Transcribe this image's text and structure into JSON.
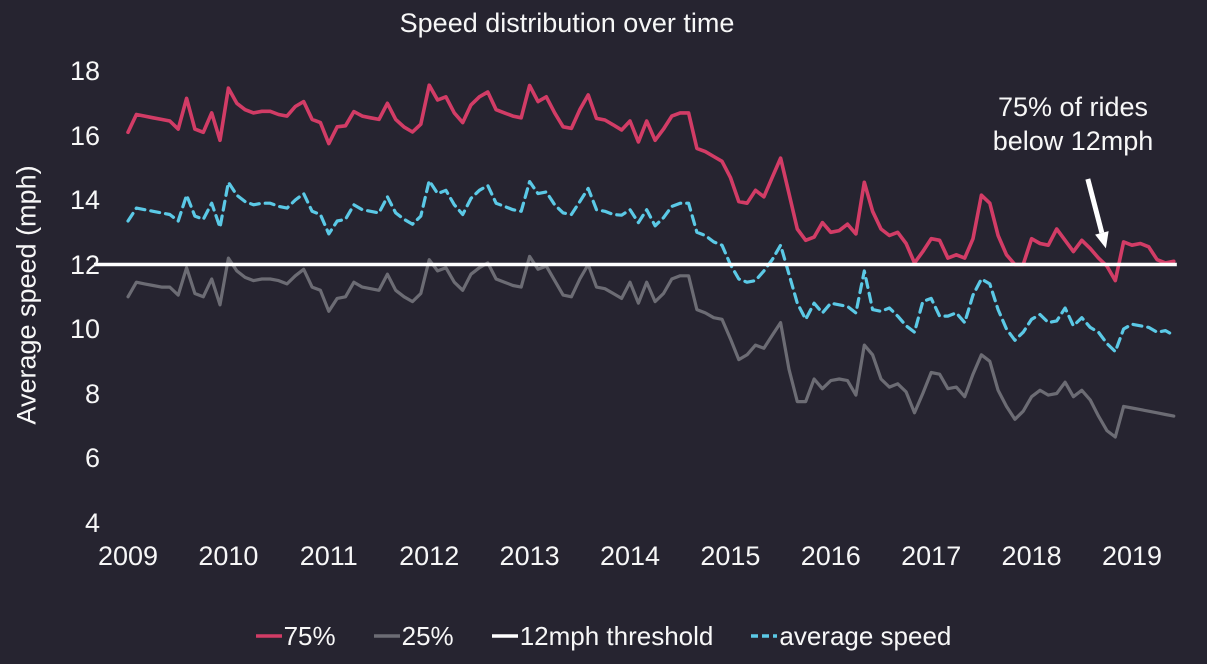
{
  "colors": {
    "background": "#262430",
    "text": "#f7f7f7",
    "p75": "#d23c66",
    "p25": "#6c6c74",
    "average": "#5bc9e6",
    "threshold": "#ffffff"
  },
  "chart_data": {
    "type": "line",
    "title": "Speed distribution over time",
    "xlabel": "",
    "ylabel": "Average speed (mph)",
    "grid": false,
    "legend_position": "bottom",
    "ylim": [
      4,
      18
    ],
    "y_tick_values": [
      18,
      16,
      14,
      12,
      10,
      8,
      6,
      4
    ],
    "x_tick_years": [
      2009,
      2010,
      2011,
      2012,
      2013,
      2014,
      2015,
      2016,
      2017,
      2018,
      2019
    ],
    "x_start_year": 2009,
    "points_per_year": 12,
    "threshold": {
      "label": "12mph threshold",
      "value": 12,
      "color": "#ffffff"
    },
    "annotation": {
      "line1": "75% of rides",
      "line2": "below 12mph",
      "arrow": {
        "from": {
          "year": 2018.56,
          "value": 14.65
        },
        "to": {
          "year": 2018.74,
          "value": 12.5
        }
      }
    },
    "legend": [
      "75%",
      "25%",
      "12mph threshold",
      "average speed"
    ],
    "series": [
      {
        "name": "25%",
        "color": "#6c6c74",
        "style": "solid",
        "values": [
          11.0,
          11.45,
          11.4,
          11.35,
          11.3,
          11.3,
          11.05,
          11.9,
          11.1,
          11.0,
          11.55,
          10.75,
          12.2,
          11.8,
          11.6,
          11.5,
          11.55,
          11.55,
          11.5,
          11.4,
          11.65,
          11.85,
          11.3,
          11.2,
          10.55,
          10.95,
          11.0,
          11.45,
          11.3,
          11.25,
          11.2,
          11.7,
          11.2,
          11.0,
          10.85,
          11.1,
          12.15,
          11.8,
          11.9,
          11.45,
          11.2,
          11.7,
          11.9,
          12.05,
          11.55,
          11.45,
          11.35,
          11.3,
          12.25,
          11.85,
          11.95,
          11.5,
          11.05,
          11.0,
          11.55,
          12.0,
          11.3,
          11.25,
          11.1,
          10.95,
          11.45,
          10.8,
          11.45,
          10.85,
          11.1,
          11.55,
          11.65,
          11.65,
          10.6,
          10.5,
          10.35,
          10.3,
          9.7,
          9.05,
          9.2,
          9.5,
          9.4,
          9.8,
          10.2,
          8.75,
          7.75,
          7.75,
          8.45,
          8.15,
          8.4,
          8.45,
          8.4,
          7.95,
          9.5,
          9.2,
          8.45,
          8.2,
          8.3,
          8.05,
          7.4,
          8.0,
          8.65,
          8.6,
          8.15,
          8.2,
          7.9,
          8.6,
          9.2,
          9.0,
          8.1,
          7.6,
          7.2,
          7.45,
          7.9,
          8.1,
          7.95,
          8.0,
          8.35,
          7.9,
          8.1,
          7.8,
          7.3,
          6.85,
          6.65,
          7.6,
          7.55,
          7.5,
          7.45,
          7.4,
          7.35,
          7.3
        ]
      },
      {
        "name": "average speed",
        "color": "#5bc9e6",
        "style": "dashed",
        "values": [
          13.35,
          13.75,
          13.7,
          13.65,
          13.6,
          13.55,
          13.35,
          14.15,
          13.5,
          13.4,
          13.9,
          13.15,
          14.55,
          14.15,
          13.95,
          13.85,
          13.9,
          13.9,
          13.8,
          13.75,
          14.0,
          14.2,
          13.65,
          13.55,
          12.95,
          13.35,
          13.4,
          13.85,
          13.7,
          13.65,
          13.6,
          14.1,
          13.6,
          13.4,
          13.25,
          13.5,
          14.6,
          14.2,
          14.3,
          13.85,
          13.55,
          14.05,
          14.3,
          14.45,
          13.9,
          13.8,
          13.7,
          13.65,
          14.57,
          14.2,
          14.25,
          13.85,
          13.6,
          13.55,
          13.95,
          14.36,
          13.7,
          13.65,
          13.55,
          13.53,
          13.7,
          13.3,
          13.7,
          13.2,
          13.45,
          13.8,
          13.9,
          13.9,
          13.0,
          12.9,
          12.7,
          12.6,
          12.0,
          11.55,
          11.45,
          11.5,
          11.8,
          12.15,
          12.6,
          11.7,
          10.8,
          10.3,
          10.8,
          10.5,
          10.8,
          10.75,
          10.7,
          10.5,
          11.8,
          10.6,
          10.55,
          10.65,
          10.4,
          10.1,
          9.9,
          10.85,
          10.95,
          10.4,
          10.4,
          10.5,
          10.2,
          11.05,
          11.55,
          11.4,
          10.6,
          10.0,
          9.65,
          9.9,
          10.3,
          10.45,
          10.2,
          10.25,
          10.65,
          10.1,
          10.35,
          10.05,
          9.9,
          9.55,
          9.3,
          10.0,
          10.15,
          10.1,
          10.05,
          9.9,
          9.95,
          9.8
        ]
      },
      {
        "name": "75%",
        "color": "#d23c66",
        "style": "solid",
        "values": [
          16.1,
          16.65,
          16.6,
          16.55,
          16.5,
          16.45,
          16.2,
          17.15,
          16.2,
          16.1,
          16.7,
          15.85,
          17.47,
          17.0,
          16.8,
          16.7,
          16.75,
          16.75,
          16.65,
          16.6,
          16.9,
          17.05,
          16.5,
          16.4,
          15.75,
          16.27,
          16.3,
          16.74,
          16.6,
          16.55,
          16.5,
          17.0,
          16.5,
          16.26,
          16.11,
          16.35,
          17.56,
          17.1,
          17.2,
          16.7,
          16.4,
          16.95,
          17.2,
          17.35,
          16.8,
          16.7,
          16.6,
          16.55,
          17.55,
          17.05,
          17.2,
          16.7,
          16.27,
          16.22,
          16.8,
          17.26,
          16.53,
          16.48,
          16.33,
          16.17,
          16.45,
          15.8,
          16.45,
          15.85,
          16.2,
          16.6,
          16.7,
          16.7,
          15.6,
          15.5,
          15.35,
          15.2,
          14.7,
          13.95,
          13.9,
          14.3,
          14.1,
          14.7,
          15.3,
          14.2,
          13.1,
          12.75,
          12.85,
          13.3,
          13.0,
          13.05,
          13.25,
          12.95,
          14.55,
          13.65,
          13.1,
          12.9,
          13.0,
          12.65,
          12.05,
          12.4,
          12.8,
          12.75,
          12.2,
          12.3,
          12.2,
          12.8,
          14.15,
          13.9,
          12.9,
          12.3,
          12.0,
          12.0,
          12.8,
          12.65,
          12.6,
          13.1,
          12.75,
          12.4,
          12.75,
          12.5,
          12.2,
          11.95,
          11.5,
          12.7,
          12.6,
          12.65,
          12.55,
          12.15,
          12.05,
          12.1
        ]
      }
    ]
  }
}
